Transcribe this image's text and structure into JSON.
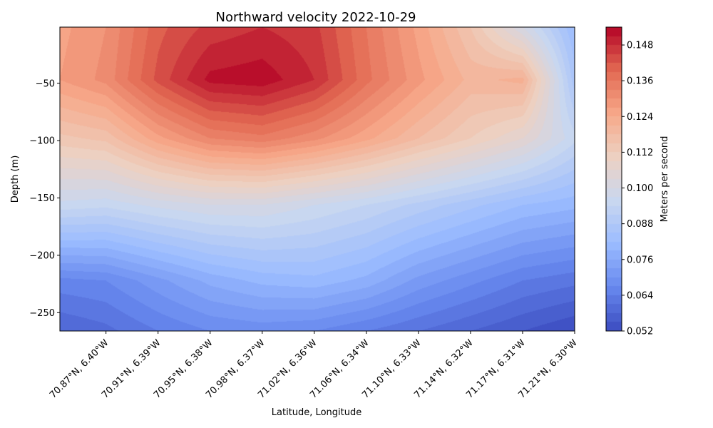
{
  "chart_data": {
    "type": "heatmap",
    "subtype": "filled-contour",
    "title": "Northward velocity 2022-10-29",
    "xlabel": "Latitude, Longitude",
    "ylabel": "Depth (m)",
    "colorbar_label": "Meters per second",
    "colormap": "coolwarm",
    "colormap_stops": [
      "#3b4cc0",
      "#6788ee",
      "#9abbff",
      "#c9d7f0",
      "#edd1c2",
      "#f7a889",
      "#e26952",
      "#b40426"
    ],
    "x_tick_labels": [
      "70.87°N, 6.40°W",
      "70.91°N, 6.39°W",
      "70.95°N, 6.38°W",
      "70.98°N, 6.37°W",
      "71.02°N, 6.36°W",
      "71.06°N, 6.34°W",
      "71.10°N, 6.33°W",
      "71.14°N, 6.32°W",
      "71.17°N, 6.31°W",
      "71.21°N, 6.30°W"
    ],
    "y_ticks": [
      -50,
      -100,
      -150,
      -200,
      -250
    ],
    "ylim": [
      -266,
      -1
    ],
    "colorbar_ticks": [
      0.052,
      0.064,
      0.076,
      0.088,
      0.1,
      0.112,
      0.124,
      0.136,
      0.148
    ],
    "colorbar_range": [
      0.052,
      0.154
    ],
    "grid": false,
    "depths": [
      -1,
      -47,
      -98,
      -156,
      -222,
      -266
    ],
    "x_positions": [
      "start",
      "70.87°N, 6.40°W",
      "70.91°N, 6.39°W",
      "70.95°N, 6.38°W",
      "70.98°N, 6.37°W",
      "71.02°N, 6.36°W",
      "71.06°N, 6.34°W",
      "71.10°N, 6.33°W",
      "71.14°N, 6.32°W",
      "71.17°N, 6.31°W",
      "71.21°N, 6.30°W"
    ],
    "values": [
      [
        0.126,
        0.13,
        0.141,
        0.146,
        0.148,
        0.146,
        0.136,
        0.126,
        0.115,
        0.1,
        0.082
      ],
      [
        0.127,
        0.131,
        0.143,
        0.152,
        0.153,
        0.148,
        0.137,
        0.128,
        0.12,
        0.122,
        0.086
      ],
      [
        0.114,
        0.116,
        0.126,
        0.133,
        0.135,
        0.131,
        0.125,
        0.118,
        0.112,
        0.106,
        0.095
      ],
      [
        0.096,
        0.095,
        0.098,
        0.1,
        0.1,
        0.097,
        0.094,
        0.09,
        0.086,
        0.082,
        0.08
      ],
      [
        0.066,
        0.067,
        0.072,
        0.077,
        0.08,
        0.081,
        0.078,
        0.072,
        0.068,
        0.064,
        0.062
      ],
      [
        0.058,
        0.06,
        0.064,
        0.067,
        0.068,
        0.067,
        0.064,
        0.061,
        0.058,
        0.055,
        0.052
      ]
    ]
  }
}
